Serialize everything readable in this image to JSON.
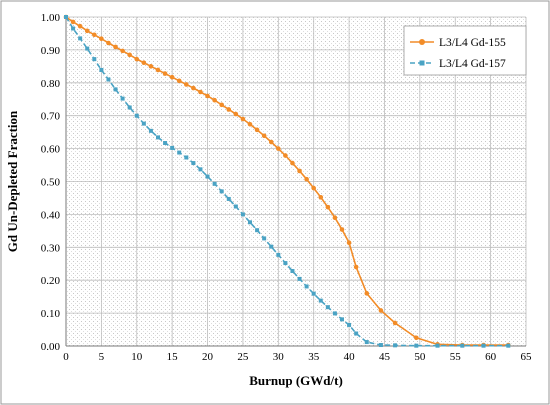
{
  "chart_data": {
    "type": "line",
    "xlabel": "Burnup (GWd/t)",
    "ylabel": "Gd Un-Depleted Fraction",
    "xlim": [
      0,
      65
    ],
    "ylim": [
      0,
      1.0
    ],
    "x_ticks": [
      0,
      5,
      10,
      15,
      20,
      25,
      30,
      35,
      40,
      45,
      50,
      55,
      60,
      65
    ],
    "x_tick_labels": [
      "0",
      "5",
      "10",
      "15",
      "20",
      "25",
      "30",
      "35",
      "40",
      "45",
      "50",
      "55",
      "60",
      "65"
    ],
    "y_ticks": [
      0,
      0.1,
      0.2,
      0.3,
      0.4,
      0.5,
      0.6,
      0.7,
      0.8,
      0.9,
      1.0
    ],
    "y_tick_labels": [
      "0.00",
      "0.10",
      "0.20",
      "0.30",
      "0.40",
      "0.50",
      "0.60",
      "0.70",
      "0.80",
      "0.90",
      "1.00"
    ],
    "grid": true,
    "legend_position": "top-right",
    "series": [
      {
        "name": "L3/L4 Gd-155",
        "color": "#f28c28",
        "marker": "circle",
        "x": [
          0,
          1,
          2,
          3,
          4,
          5,
          6,
          7,
          8,
          9,
          10,
          11,
          12,
          13,
          14,
          15,
          16,
          17,
          18,
          19,
          20,
          21,
          22,
          23,
          24,
          25,
          26,
          27,
          28,
          29,
          30,
          31,
          32,
          33,
          34,
          35,
          36,
          37,
          38,
          39,
          40,
          41,
          42.5,
          44.5,
          46.5,
          49.5,
          52.5,
          56,
          59,
          62.5
        ],
        "y": [
          1.0,
          0.985,
          0.972,
          0.958,
          0.946,
          0.934,
          0.921,
          0.909,
          0.897,
          0.885,
          0.872,
          0.861,
          0.85,
          0.839,
          0.828,
          0.817,
          0.806,
          0.795,
          0.784,
          0.772,
          0.76,
          0.747,
          0.733,
          0.719,
          0.705,
          0.69,
          0.674,
          0.657,
          0.639,
          0.62,
          0.6,
          0.579,
          0.556,
          0.532,
          0.507,
          0.48,
          0.452,
          0.422,
          0.39,
          0.354,
          0.314,
          0.24,
          0.16,
          0.108,
          0.07,
          0.025,
          0.005,
          0.003,
          0.003,
          0.003
        ]
      },
      {
        "name": "L3/L4 Gd-157",
        "color": "#4aa3c4",
        "marker": "square",
        "x": [
          0,
          1,
          2,
          3,
          4,
          5,
          6,
          7,
          8,
          9,
          10,
          11,
          12,
          13,
          14,
          15,
          16,
          17,
          18,
          19,
          20,
          21,
          22,
          23,
          24,
          25,
          26,
          27,
          28,
          29,
          30,
          31,
          32,
          33,
          34,
          35,
          36,
          37,
          38,
          39,
          40,
          41,
          42.5,
          44.5,
          46.5,
          49.5,
          52.5,
          56,
          59,
          62.5
        ],
        "y": [
          1.0,
          0.965,
          0.935,
          0.904,
          0.872,
          0.839,
          0.81,
          0.78,
          0.752,
          0.725,
          0.7,
          0.676,
          0.654,
          0.634,
          0.617,
          0.602,
          0.588,
          0.573,
          0.556,
          0.537,
          0.515,
          0.493,
          0.47,
          0.447,
          0.424,
          0.4,
          0.376,
          0.352,
          0.327,
          0.302,
          0.277,
          0.252,
          0.228,
          0.204,
          0.181,
          0.159,
          0.138,
          0.118,
          0.099,
          0.081,
          0.064,
          0.038,
          0.012,
          0.003,
          0.002,
          0.001,
          0.001,
          0.001,
          0.001,
          0.001
        ]
      }
    ]
  }
}
